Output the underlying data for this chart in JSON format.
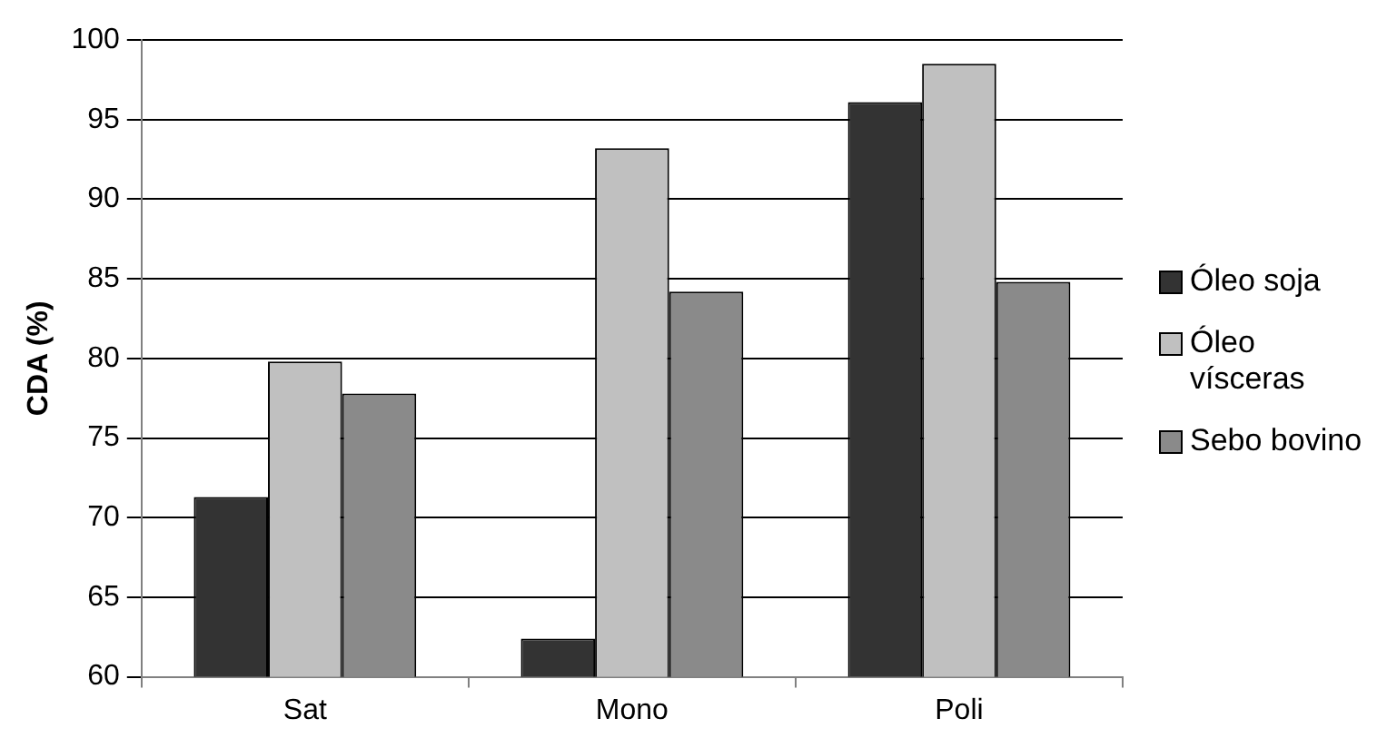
{
  "chart_data": {
    "type": "bar",
    "ylabel": "CDA (%)",
    "categories": [
      "Sat",
      "Mono",
      "Poli"
    ],
    "series": [
      {
        "name": "Óleo soja",
        "color": "#333333",
        "values": [
          71.3,
          62.4,
          96.1
        ]
      },
      {
        "name": "Óleo vísceras",
        "color": "#c0c0c0",
        "values": [
          79.8,
          93.2,
          98.5
        ]
      },
      {
        "name": "Sebo bovino",
        "color": "#8a8a8a",
        "values": [
          77.8,
          84.2,
          84.8
        ]
      }
    ],
    "ylim": [
      60,
      100
    ],
    "yticks": [
      60,
      65,
      70,
      75,
      80,
      85,
      90,
      95,
      100
    ],
    "grid": "y",
    "legend": "right"
  }
}
